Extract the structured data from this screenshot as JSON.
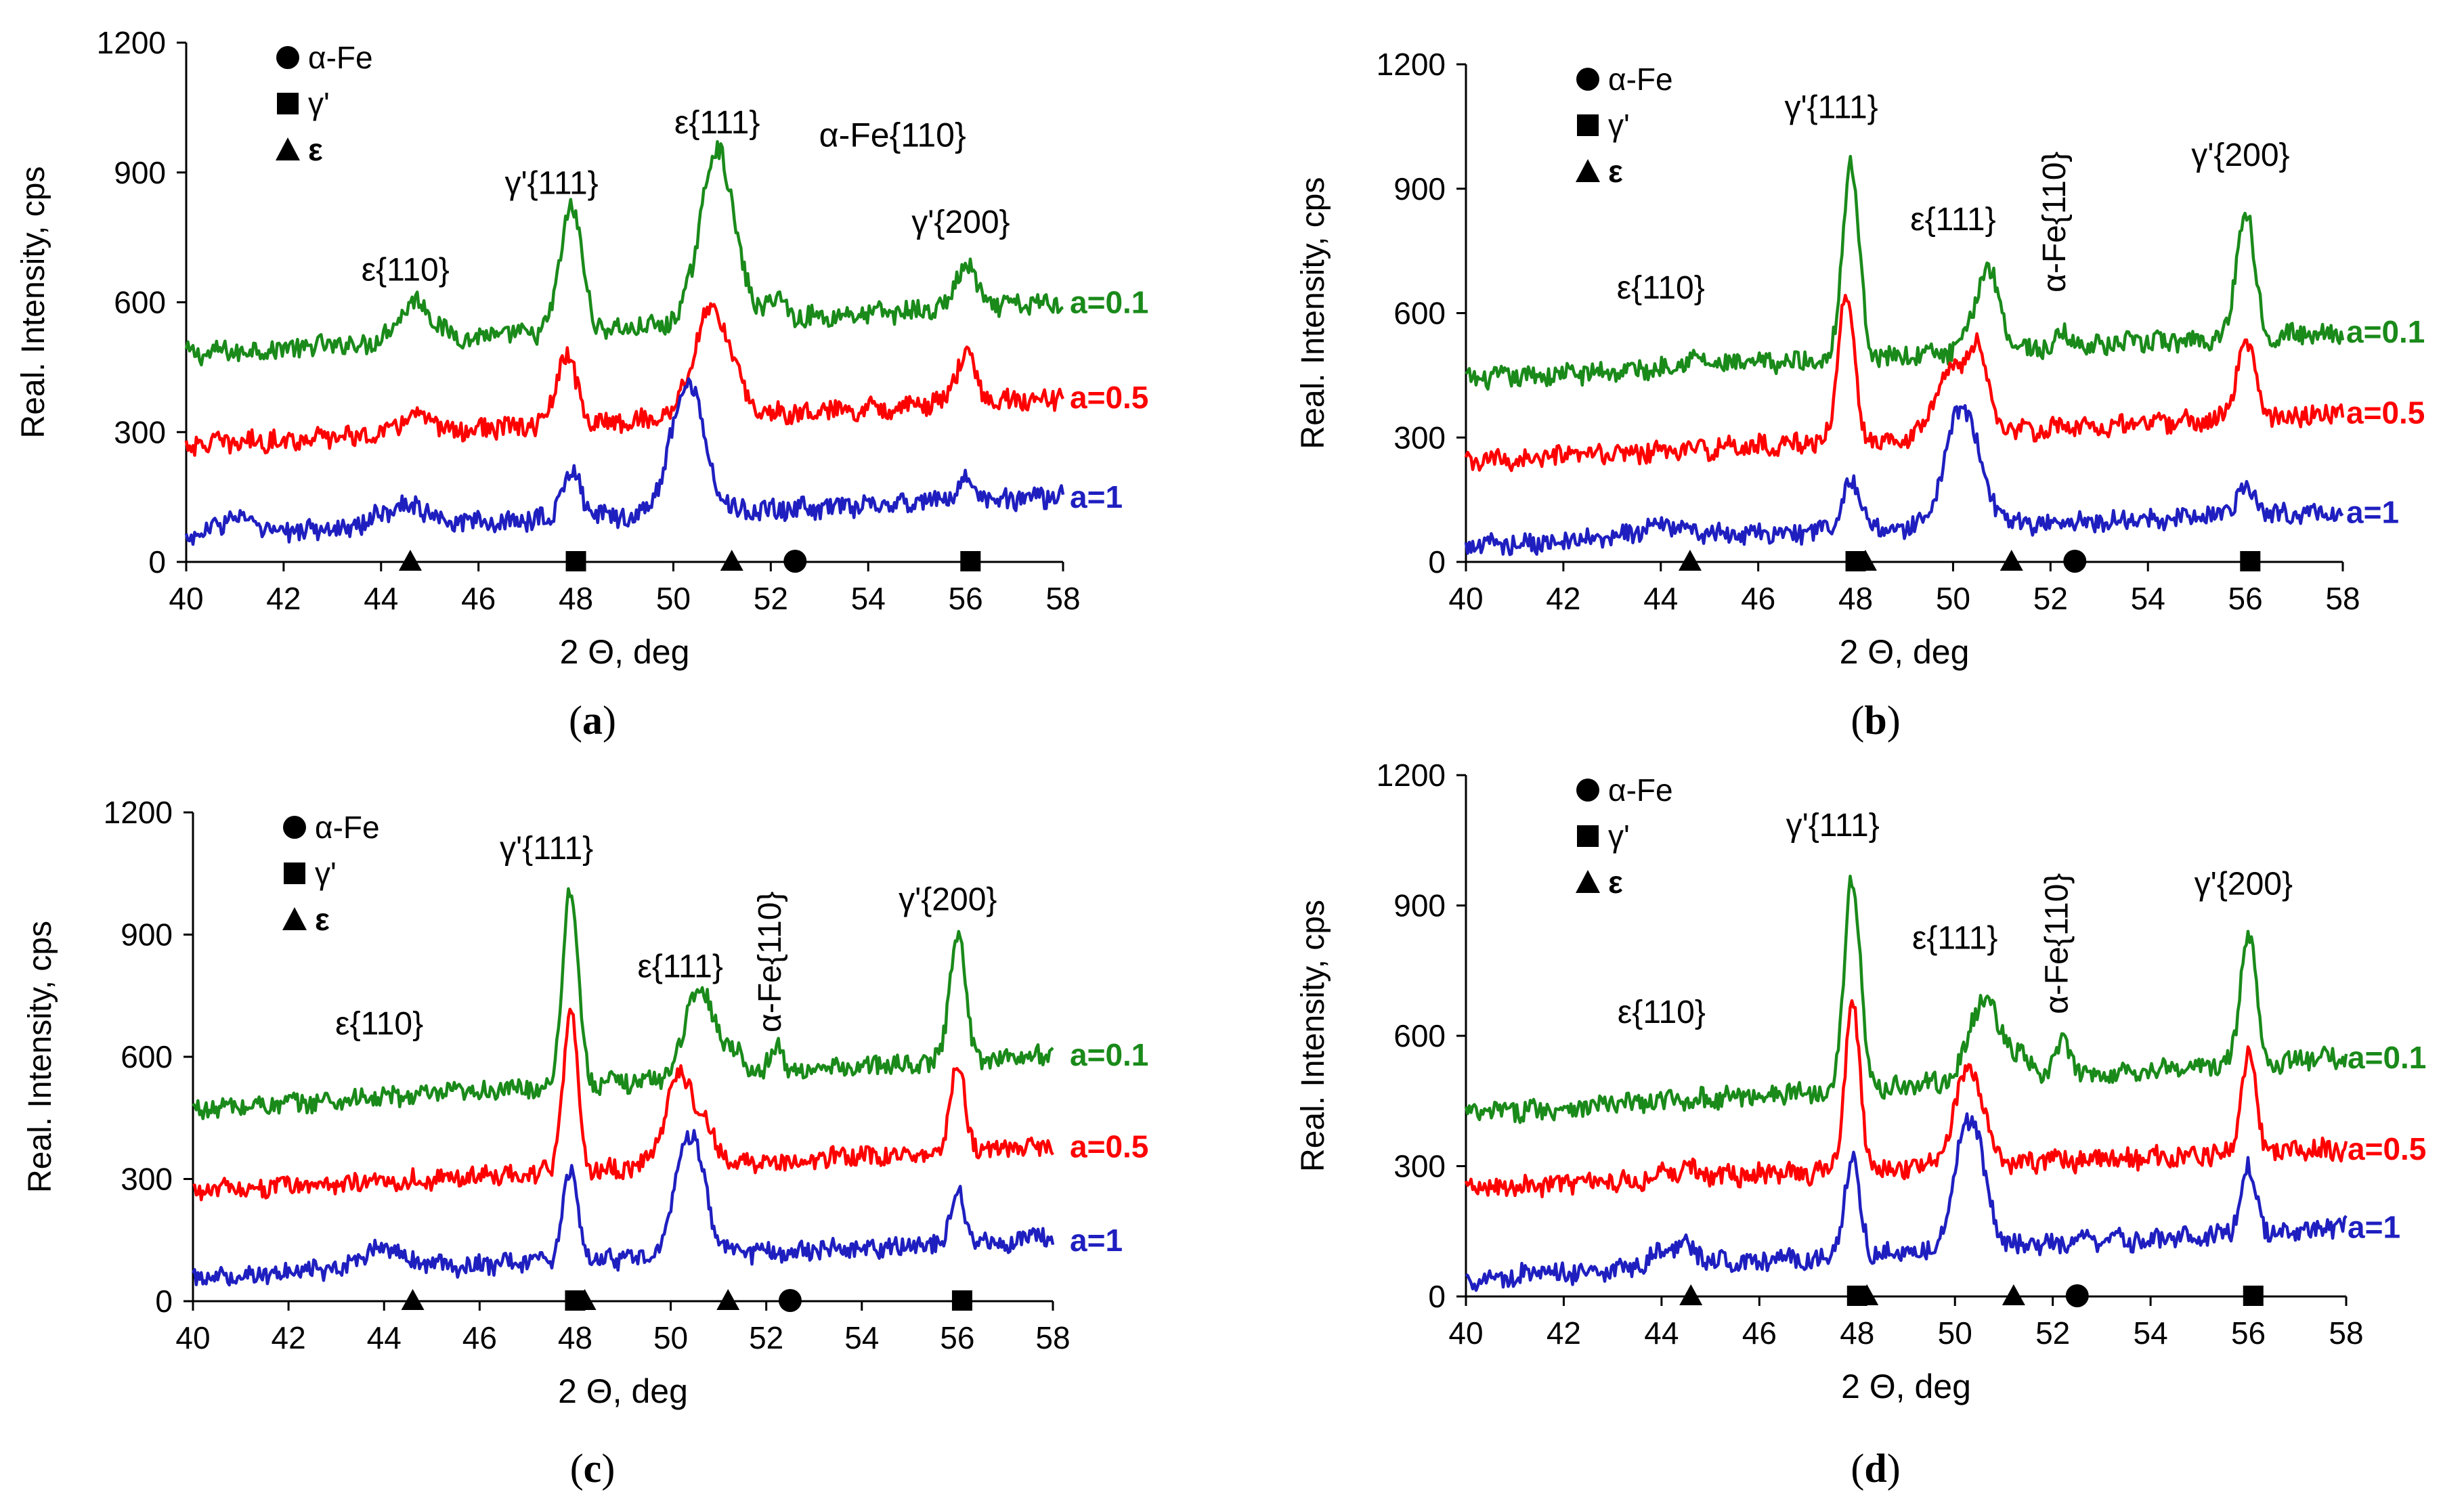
{
  "figure": {
    "colors": {
      "green": "#1a8a1a",
      "red": "#ff0000",
      "blue": "#1f1fc0",
      "axis": "#000000"
    },
    "legend": {
      "alpha": "α-Fe",
      "gamma": "γ'",
      "epsilon": "ε"
    },
    "series_labels": [
      "a=0.1",
      "a=0.5",
      "a=1"
    ]
  },
  "chart_data": [
    {
      "type": "line",
      "panel_label": "a",
      "xlabel": "2 Θ, deg",
      "ylabel": "Real. Intensity,  cps",
      "xlim": [
        40,
        58
      ],
      "ylim": [
        0,
        1200
      ],
      "xticks": [
        "40",
        "42",
        "44",
        "46",
        "48",
        "50",
        "52",
        "54",
        "56",
        "58"
      ],
      "yticks": [
        "0",
        "300",
        "600",
        "900",
        "1200"
      ],
      "series": [
        {
          "name": "a=0.1",
          "color": "#1a8a1a",
          "base_start": 480,
          "base_end": 600,
          "peaks": [
            [
              44.7,
              90,
              0.35
            ],
            [
              47.9,
              290,
              0.22
            ],
            [
              50.9,
              400,
              0.35
            ],
            [
              52.1,
              50,
              0.2
            ],
            [
              56.0,
              100,
              0.2
            ]
          ]
        },
        {
          "name": "a=0.5",
          "color": "#ff0000",
          "base_start": 270,
          "base_end": 380,
          "peaks": [
            [
              44.7,
              40,
              0.3
            ],
            [
              47.8,
              160,
              0.2
            ],
            [
              50.8,
              250,
              0.38
            ],
            [
              56.0,
              110,
              0.2
            ]
          ]
        },
        {
          "name": "a=1",
          "color": "#1f1fc0",
          "base_start": 60,
          "base_end": 150,
          "peaks": [
            [
              41.0,
              40,
              0.3
            ],
            [
              44.5,
              50,
              0.5
            ],
            [
              47.9,
              110,
              0.2
            ],
            [
              50.3,
              300,
              0.35
            ],
            [
              56.0,
              50,
              0.2
            ]
          ]
        }
      ],
      "markers": [
        {
          "x": 44.6,
          "shape": "triangle"
        },
        {
          "x": 48.0,
          "shape": "square"
        },
        {
          "x": 51.2,
          "shape": "triangle"
        },
        {
          "x": 52.5,
          "shape": "circle"
        },
        {
          "x": 56.1,
          "shape": "square"
        }
      ],
      "annotations": [
        {
          "text": "ε{110}",
          "x": 44.5,
          "y": 650
        },
        {
          "text": "γ'{111}",
          "x": 47.5,
          "y": 850
        },
        {
          "text": "ε{111}",
          "x": 50.9,
          "y": 990
        },
        {
          "text": "α-Fe{110}",
          "x": 54.5,
          "y": 960
        },
        {
          "text": "γ'{200}",
          "x": 55.9,
          "y": 760
        }
      ]
    },
    {
      "type": "line",
      "panel_label": "b",
      "xlabel": "2 Θ, deg",
      "ylabel": "Real. Intensity,  cps",
      "xlim": [
        40,
        58
      ],
      "ylim": [
        0,
        1200
      ],
      "xticks": [
        "40",
        "42",
        "44",
        "46",
        "48",
        "50",
        "52",
        "54",
        "56",
        "58"
      ],
      "yticks": [
        "0",
        "300",
        "600",
        "900",
        "1200"
      ],
      "series": [
        {
          "name": "a=0.1",
          "color": "#1a8a1a",
          "base_start": 440,
          "base_end": 555,
          "peaks": [
            [
              44.6,
              20,
              0.3
            ],
            [
              47.9,
              470,
              0.17
            ],
            [
              50.7,
              200,
              0.25
            ],
            [
              52.3,
              30,
              0.15
            ],
            [
              56.0,
              310,
              0.18
            ]
          ]
        },
        {
          "name": "a=0.5",
          "color": "#ff0000",
          "base_start": 240,
          "base_end": 360,
          "peaks": [
            [
              47.8,
              360,
              0.16
            ],
            [
              49.9,
              150,
              0.3
            ],
            [
              50.5,
              200,
              0.22
            ],
            [
              56.0,
              190,
              0.18
            ]
          ]
        },
        {
          "name": "a=1",
          "color": "#1f1fc0",
          "base_start": 40,
          "base_end": 120,
          "peaks": [
            [
              44.0,
              30,
              0.5
            ],
            [
              47.9,
              120,
              0.2
            ],
            [
              50.2,
              290,
              0.35
            ],
            [
              56.0,
              60,
              0.2
            ]
          ]
        }
      ],
      "markers": [
        {
          "x": 44.6,
          "shape": "triangle"
        },
        {
          "x": 48.0,
          "shape": "square"
        },
        {
          "x": 48.2,
          "shape": "triangle"
        },
        {
          "x": 51.2,
          "shape": "triangle"
        },
        {
          "x": 52.5,
          "shape": "circle"
        },
        {
          "x": 56.1,
          "shape": "square"
        }
      ],
      "annotations": [
        {
          "text": "ε{110}",
          "x": 44.0,
          "y": 635
        },
        {
          "text": "γ'{111}",
          "x": 47.5,
          "y": 1070
        },
        {
          "text": "ε{111}",
          "x": 50.0,
          "y": 800
        },
        {
          "text": "α-Fe{110}",
          "x": 52.3,
          "y": 650,
          "rotate": true
        },
        {
          "text": "γ'{200}",
          "x": 55.9,
          "y": 955
        }
      ]
    },
    {
      "type": "line",
      "panel_label": "c",
      "xlabel": "2 Θ, deg",
      "ylabel": "Real. Intensity,  cps",
      "xlim": [
        40,
        58
      ],
      "ylim": [
        0,
        1200
      ],
      "xticks": [
        "40",
        "42",
        "44",
        "46",
        "48",
        "50",
        "52",
        "54",
        "56",
        "58"
      ],
      "yticks": [
        "0",
        "300",
        "600",
        "900",
        "1200"
      ],
      "series": [
        {
          "name": "a=0.1",
          "color": "#1a8a1a",
          "base_start": 470,
          "base_end": 605,
          "peaks": [
            [
              47.9,
              490,
              0.16
            ],
            [
              50.6,
              220,
              0.3
            ],
            [
              51.3,
              60,
              0.2
            ],
            [
              52.2,
              60,
              0.15
            ],
            [
              56.0,
              320,
              0.16
            ]
          ]
        },
        {
          "name": "a=0.5",
          "color": "#ff0000",
          "base_start": 270,
          "base_end": 380,
          "peaks": [
            [
              47.9,
              390,
              0.15
            ],
            [
              50.2,
              230,
              0.3
            ],
            [
              50.8,
              60,
              0.2
            ],
            [
              56.0,
              220,
              0.15
            ]
          ]
        },
        {
          "name": "a=1",
          "color": "#1f1fc0",
          "base_start": 60,
          "base_end": 150,
          "peaks": [
            [
              44.0,
              50,
              0.4
            ],
            [
              47.9,
              210,
              0.16
            ],
            [
              50.4,
              300,
              0.3
            ],
            [
              56.0,
              130,
              0.15
            ],
            [
              57.7,
              30,
              0.1
            ]
          ]
        }
      ],
      "markers": [
        {
          "x": 44.6,
          "shape": "triangle"
        },
        {
          "x": 48.0,
          "shape": "square"
        },
        {
          "x": 48.2,
          "shape": "triangle"
        },
        {
          "x": 51.2,
          "shape": "triangle"
        },
        {
          "x": 52.5,
          "shape": "circle"
        },
        {
          "x": 56.1,
          "shape": "square"
        }
      ],
      "annotations": [
        {
          "text": "ε{110}",
          "x": 43.9,
          "y": 655
        },
        {
          "text": "γ'{111}",
          "x": 47.4,
          "y": 1085
        },
        {
          "text": "ε{111}",
          "x": 50.2,
          "y": 795
        },
        {
          "text": "α-Fe{110}",
          "x": 52.3,
          "y": 660,
          "rotate": true
        },
        {
          "text": "γ'{200}",
          "x": 55.8,
          "y": 960
        }
      ]
    },
    {
      "type": "line",
      "panel_label": "d",
      "xlabel": "2 Θ, deg",
      "ylabel": "Real. Intensity,  cps",
      "xlim": [
        40,
        58
      ],
      "ylim": [
        0,
        1200
      ],
      "xticks": [
        "40",
        "42",
        "44",
        "46",
        "48",
        "50",
        "52",
        "54",
        "56",
        "58"
      ],
      "yticks": [
        "0",
        "300",
        "600",
        "900",
        "1200"
      ],
      "series": [
        {
          "name": "a=0.1",
          "color": "#1a8a1a",
          "base_start": 420,
          "base_end": 550,
          "peaks": [
            [
              47.9,
              490,
              0.16
            ],
            [
              50.6,
              190,
              0.3
            ],
            [
              51.3,
              50,
              0.2
            ],
            [
              52.2,
              80,
              0.15
            ],
            [
              56.0,
              300,
              0.16
            ]
          ]
        },
        {
          "name": "a=0.5",
          "color": "#ff0000",
          "base_start": 250,
          "base_end": 340,
          "peaks": [
            [
              44.4,
              20,
              0.4
            ],
            [
              47.9,
              380,
              0.15
            ],
            [
              50.3,
              220,
              0.3
            ],
            [
              56.0,
              230,
              0.15
            ]
          ]
        },
        {
          "name": "a=1",
          "color": "#1f1fc0",
          "base_start": 40,
          "base_end": 160,
          "peaks": [
            [
              44.3,
              50,
              0.4
            ],
            [
              47.9,
              220,
              0.16
            ],
            [
              50.3,
              300,
              0.3
            ],
            [
              56.0,
              150,
              0.15
            ]
          ]
        }
      ],
      "markers": [
        {
          "x": 44.6,
          "shape": "triangle"
        },
        {
          "x": 48.0,
          "shape": "square"
        },
        {
          "x": 48.2,
          "shape": "triangle"
        },
        {
          "x": 51.2,
          "shape": "triangle"
        },
        {
          "x": 52.5,
          "shape": "circle"
        },
        {
          "x": 56.1,
          "shape": "square"
        }
      ],
      "annotations": [
        {
          "text": "ε{110}",
          "x": 44.0,
          "y": 630
        },
        {
          "text": "γ'{111}",
          "x": 47.5,
          "y": 1060
        },
        {
          "text": "ε{111}",
          "x": 50.0,
          "y": 800
        },
        {
          "text": "α-Fe{110}",
          "x": 52.3,
          "y": 650,
          "rotate": true
        },
        {
          "text": "γ'{200}",
          "x": 55.9,
          "y": 925
        }
      ]
    }
  ]
}
